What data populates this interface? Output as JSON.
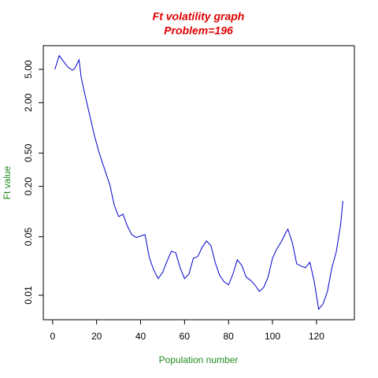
{
  "chart_data": {
    "type": "line",
    "title": "Ft volatility graph",
    "subtitle": "Problem=196",
    "x_label": "Population number",
    "y_label": "Ft value",
    "y_log": true,
    "series": [
      {
        "color": "#0000cd",
        "x": [
          1,
          3,
          5,
          7,
          9,
          10,
          12,
          13,
          15,
          17,
          19,
          21,
          23,
          25,
          26,
          28,
          30,
          32,
          34,
          36,
          38,
          40,
          42,
          44,
          46,
          48,
          50,
          52,
          54,
          56,
          58,
          60,
          62,
          64,
          66,
          68,
          70,
          72,
          74,
          76,
          78,
          80,
          82,
          84,
          86,
          88,
          90,
          92,
          94,
          96,
          98,
          100,
          102,
          104,
          106,
          107,
          109,
          111,
          113,
          115,
          117,
          119,
          121,
          123,
          125,
          127,
          129,
          131,
          132
        ],
        "values": [
          5.0,
          7.3,
          6.2,
          5.3,
          4.9,
          5.1,
          6.5,
          4.0,
          2.3,
          1.37,
          0.81,
          0.52,
          0.36,
          0.25,
          0.21,
          0.12,
          0.087,
          0.093,
          0.067,
          0.053,
          0.049,
          0.051,
          0.053,
          0.028,
          0.02,
          0.0158,
          0.0187,
          0.0254,
          0.0336,
          0.0322,
          0.0213,
          0.0158,
          0.0179,
          0.0277,
          0.029,
          0.0374,
          0.0446,
          0.039,
          0.0243,
          0.0172,
          0.0145,
          0.0133,
          0.0179,
          0.0265,
          0.0228,
          0.0165,
          0.0151,
          0.0133,
          0.0111,
          0.0124,
          0.0165,
          0.0277,
          0.0359,
          0.0437,
          0.0554,
          0.0617,
          0.0427,
          0.0238,
          0.0223,
          0.0213,
          0.0248,
          0.0145,
          0.0068,
          0.0079,
          0.0111,
          0.0213,
          0.033,
          0.07,
          0.134
        ]
      }
    ],
    "xlim": [
      -4.24,
      137.24
    ],
    "xticks": [
      0,
      20,
      40,
      60,
      80,
      100,
      120
    ],
    "ylim": [
      0.0051,
      9.6
    ],
    "yticks": [
      0.01,
      0.05,
      {
        "value": 0.2,
        "label": "0.20"
      },
      {
        "value": 0.5,
        "label": "0.50"
      },
      {
        "value": 2,
        "label": "2.00"
      },
      {
        "value": 5,
        "label": "5.00"
      }
    ]
  }
}
